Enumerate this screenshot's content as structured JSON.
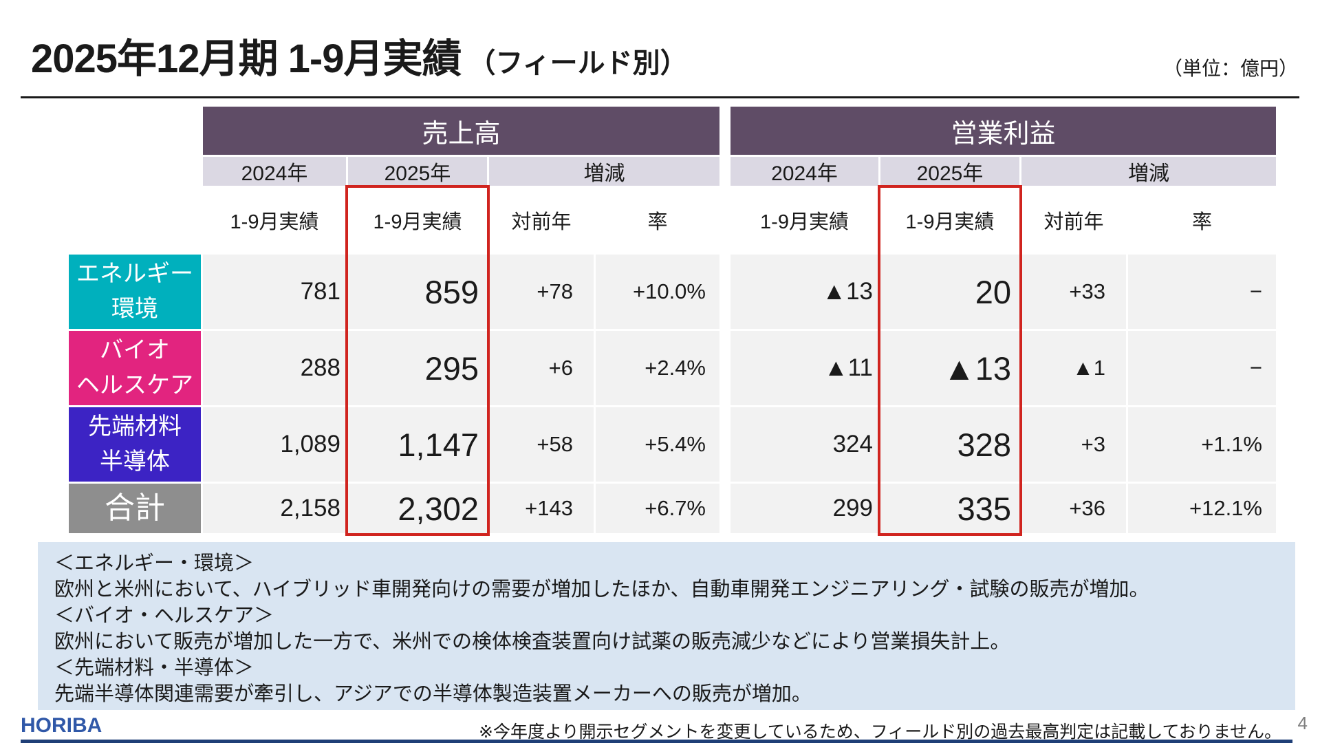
{
  "slide": {
    "title": "2025年12月期 1-9月実績",
    "title_suffix": "（フィールド別）",
    "unit_label": "（単位：億円）"
  },
  "table": {
    "section_sales": "売上高",
    "section_profit": "営業利益",
    "col_2024": "2024年",
    "col_2025": "2025年",
    "col_change": "増減",
    "sub_actual": "1-9月実績",
    "sub_yoy": "対前年",
    "sub_rate": "率",
    "highlight_color": "#d0241f",
    "rows": [
      {
        "label": [
          "エネルギー",
          "環境"
        ],
        "color": "#00b0bd",
        "sales": {
          "y2024": "781",
          "y2025": "859",
          "diff": "+78",
          "rate": "+10.0%"
        },
        "profit": {
          "y2024": "▲13",
          "y2025": "20",
          "diff": "+33",
          "rate": "−"
        }
      },
      {
        "label": [
          "バイオ",
          "ヘルスケア"
        ],
        "color": "#e2247f",
        "sales": {
          "y2024": "288",
          "y2025": "295",
          "diff": "+6",
          "rate": "+2.4%"
        },
        "profit": {
          "y2024": "▲11",
          "y2025": "▲13",
          "diff": "▲1",
          "rate": "−"
        }
      },
      {
        "label": [
          "先端材料",
          "半導体"
        ],
        "color": "#3c23c4",
        "sales": {
          "y2024": "1,089",
          "y2025": "1,147",
          "diff": "+58",
          "rate": "+5.4%"
        },
        "profit": {
          "y2024": "324",
          "y2025": "328",
          "diff": "+3",
          "rate": "+1.1%"
        }
      },
      {
        "label": [
          "合計"
        ],
        "color": "#8e8e8e",
        "sales": {
          "y2024": "2,158",
          "y2025": "2,302",
          "diff": "+143",
          "rate": "+6.7%"
        },
        "profit": {
          "y2024": "299",
          "y2025": "335",
          "diff": "+36",
          "rate": "+12.1%"
        }
      }
    ]
  },
  "notes": {
    "lines": [
      "＜エネルギー・環境＞",
      "欧州と米州において、ハイブリッド車開発向けの需要が増加したほか、自動車開発エンジニアリング・試験の販売が増加。",
      "＜バイオ・ヘルスケア＞",
      "欧州において販売が増加した一方で、米州での検体検査装置向け試薬の販売減少などにより営業損失計上。",
      "＜先端材料・半導体＞",
      "先端半導体関連需要が牽引し、アジアでの半導体製造装置メーカーへの販売が増加。"
    ]
  },
  "footer": {
    "logo": "HORIBA",
    "note": "※今年度より開示セグメントを変更しているため、フィールド別の過去最高判定は記載しておりません。",
    "page": "4"
  }
}
